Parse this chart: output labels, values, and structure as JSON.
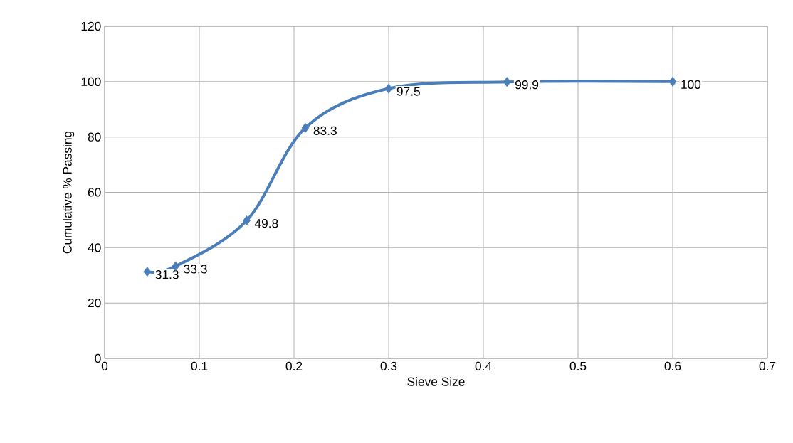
{
  "chart_data": {
    "type": "line",
    "xlabel": "Sieve Size",
    "ylabel": "Cumulative % Passing",
    "x": [
      0.045,
      0.075,
      0.15,
      0.212,
      0.3,
      0.425,
      0.6
    ],
    "values": [
      31.3,
      33.3,
      49.8,
      83.3,
      97.5,
      99.9,
      100
    ],
    "color": "#4a7ebb",
    "marker": "diamond",
    "data_labels": true,
    "grid": true,
    "xlim": [
      0,
      0.7
    ],
    "xticks": [
      0,
      0.1,
      0.2,
      0.3,
      0.4,
      0.5,
      0.6,
      0.7
    ],
    "ylim": [
      0,
      120
    ],
    "yticks": [
      0,
      20,
      40,
      60,
      80,
      100,
      120
    ]
  }
}
